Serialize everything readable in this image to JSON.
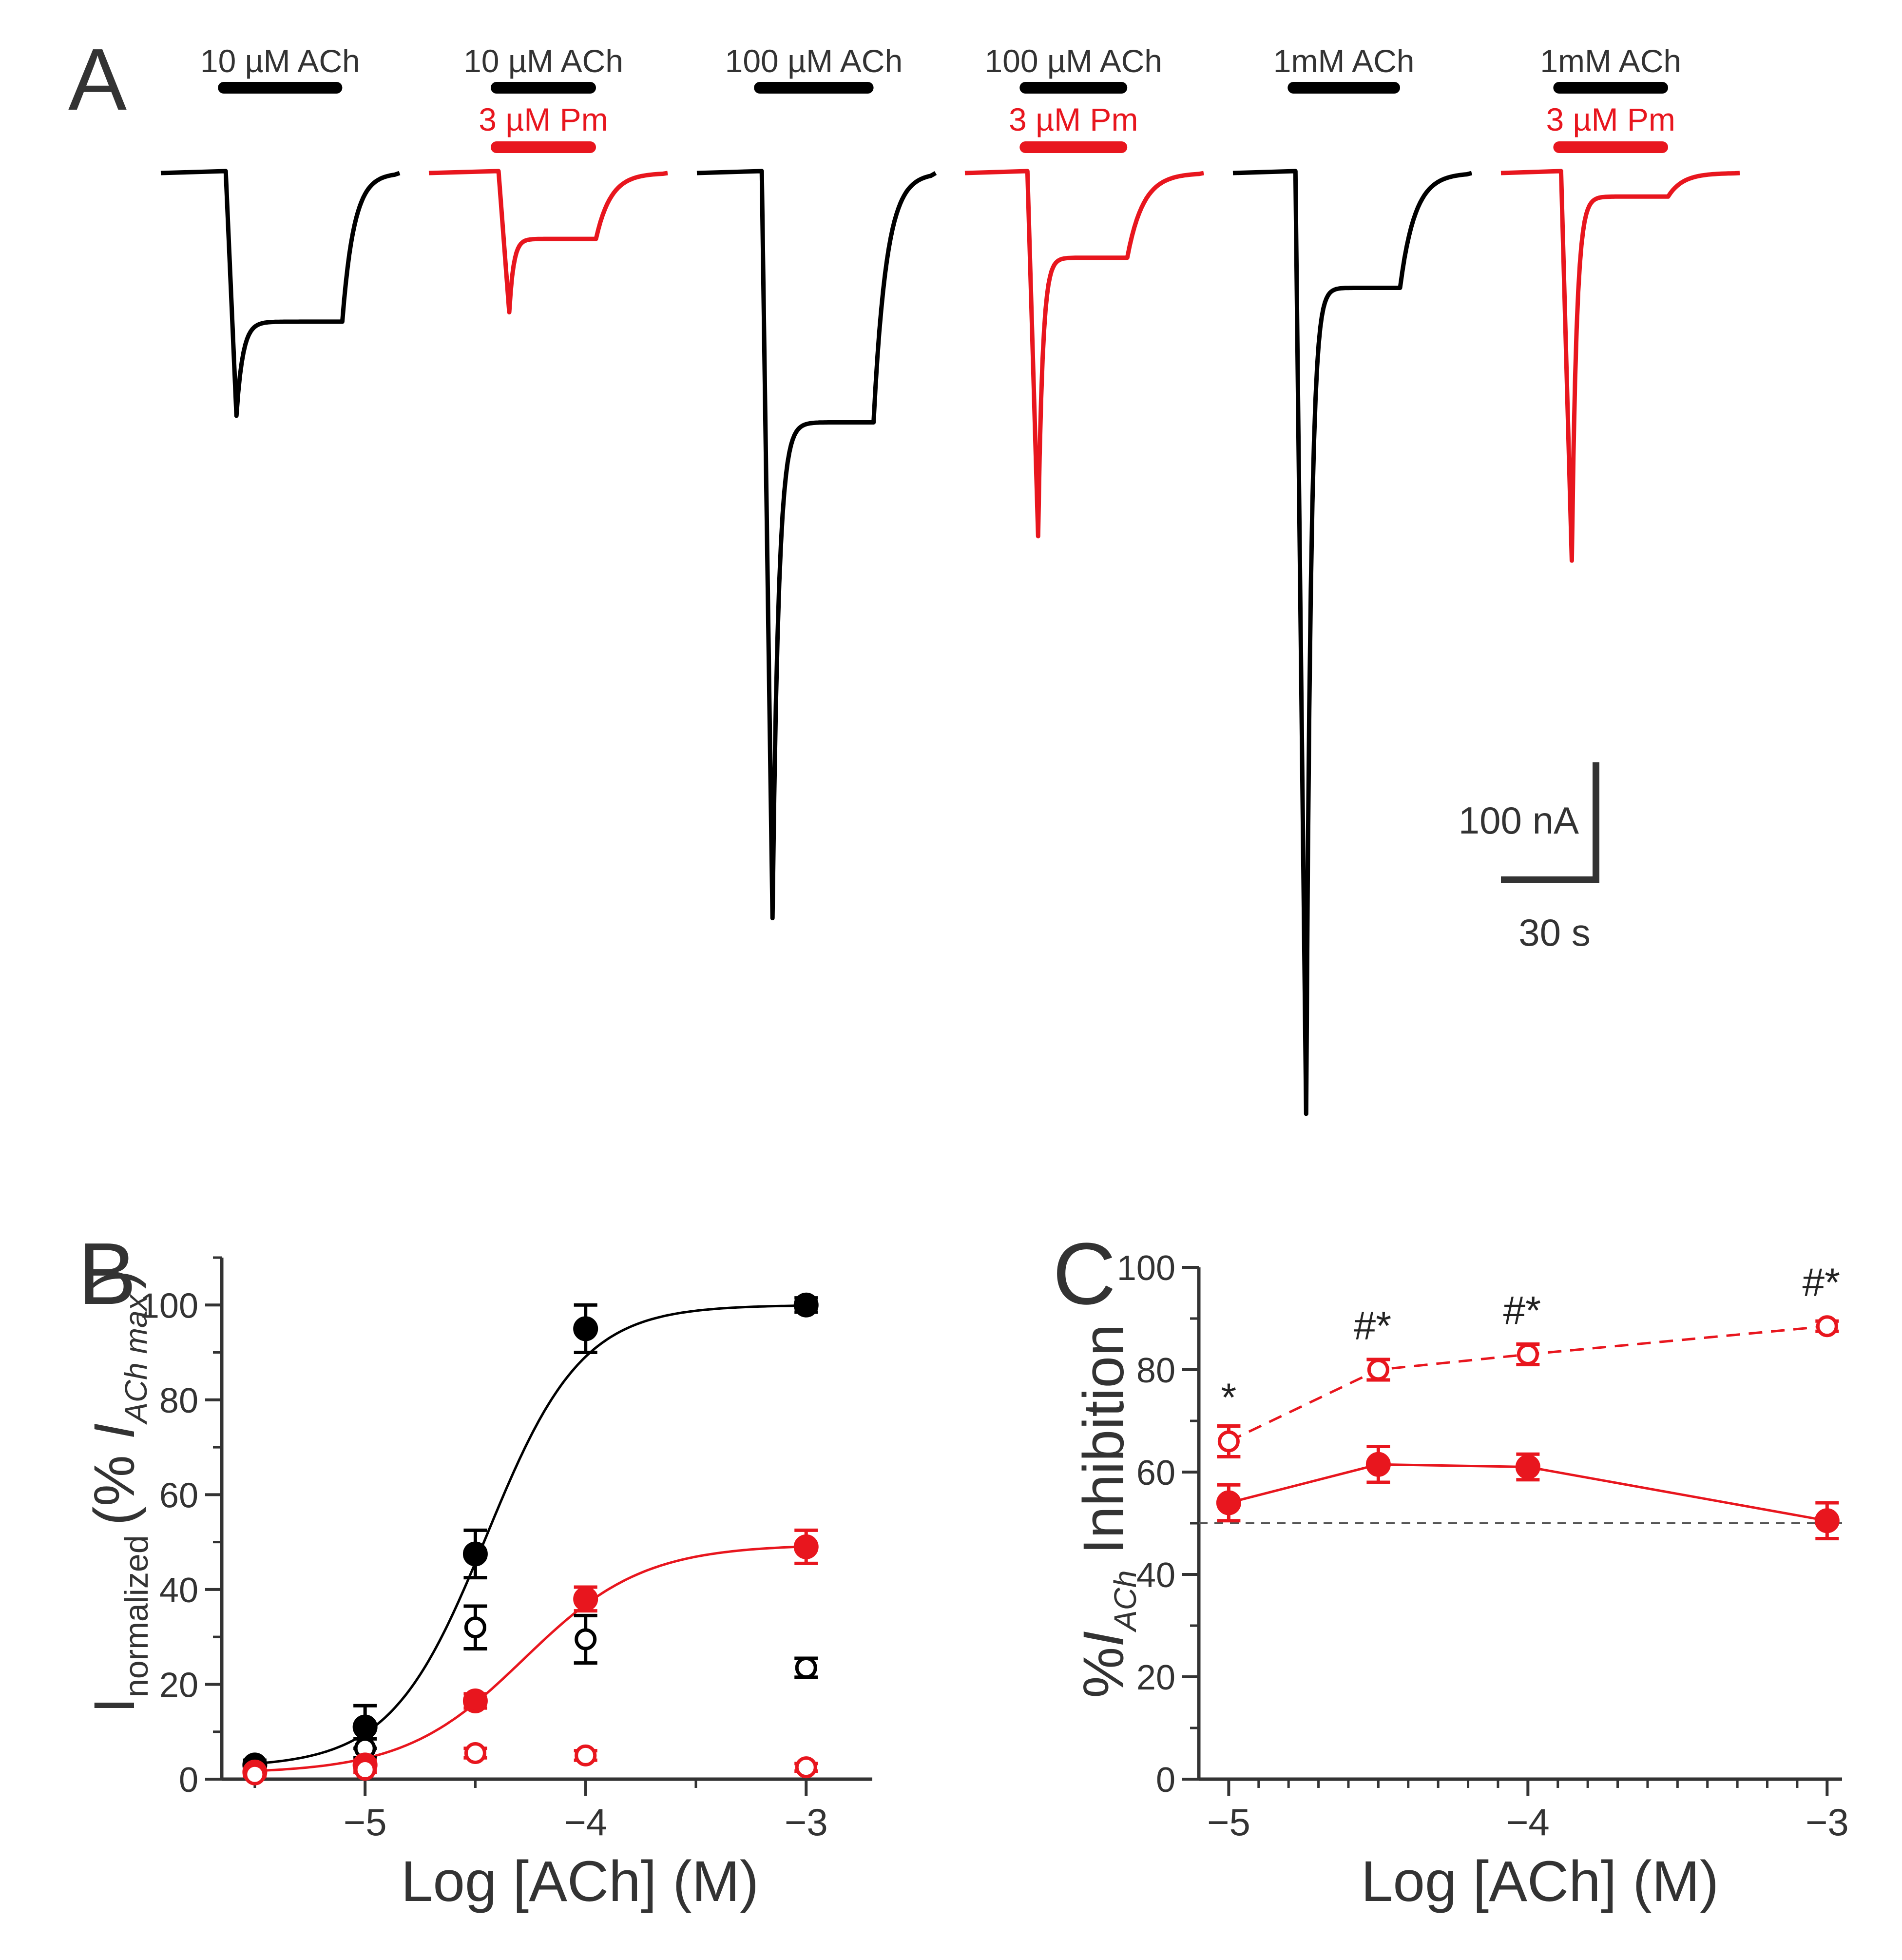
{
  "colors": {
    "control": "#000000",
    "pm": "#e8161e",
    "ref_line": "#555555"
  },
  "panel_labels": {
    "a": "A",
    "b": "B",
    "c": "C"
  },
  "panel_a": {
    "traces": [
      {
        "agonist_label": "10 µM ACh",
        "drug_label": null,
        "color": "control",
        "peak_nA": 258,
        "late_nA": 158
      },
      {
        "agonist_label": "10 µM ACh",
        "drug_label": "3 µM Pm",
        "color": "pm",
        "peak_nA": 148,
        "late_nA": 70
      },
      {
        "agonist_label": "100 µM ACh",
        "drug_label": null,
        "color": "control",
        "peak_nA": 792,
        "late_nA": 265
      },
      {
        "agonist_label": "100 µM ACh",
        "drug_label": "3 µM Pm",
        "color": "pm",
        "peak_nA": 386,
        "late_nA": 90
      },
      {
        "agonist_label": "1mM ACh",
        "drug_label": null,
        "color": "control",
        "peak_nA": 1000,
        "late_nA": 122
      },
      {
        "agonist_label": "1mM ACh",
        "drug_label": "3 µM Pm",
        "color": "pm",
        "peak_nA": 412,
        "late_nA": 25
      }
    ],
    "scale_bar": {
      "current_label": "100 nA",
      "time_label": "30 s",
      "current_nA": 100,
      "time_s": 30
    }
  },
  "chart_data": [
    {
      "type": "scatter",
      "panel": "B",
      "xlabel": "Log [ACh] (M)",
      "ylabel": {
        "main": "I",
        "sub1": "normalized",
        "open": "(% ",
        "italic": "I",
        "sub2": "ACh max",
        "close": ")"
      },
      "xlim": [
        -5.65,
        -2.7
      ],
      "ylim": [
        0,
        110
      ],
      "xticks": [
        -5,
        -4,
        -3
      ],
      "xtick_labels": [
        "−5",
        "−4",
        "−3"
      ],
      "yticks": [
        0,
        20,
        40,
        60,
        80,
        100
      ],
      "series": [
        {
          "name": "ACh peak",
          "color": "control",
          "filled": true,
          "x": [
            -5.5,
            -5,
            -4.5,
            -4,
            -3
          ],
          "y": [
            3,
            11,
            47.5,
            95,
            100
          ],
          "err": [
            1,
            4.5,
            5,
            5,
            1.5
          ],
          "fit": {
            "bottom": 2.5,
            "top": 100,
            "logEC50": -4.45,
            "hill": 2.0
          }
        },
        {
          "name": "ACh late",
          "color": "control",
          "filled": false,
          "x": [
            -5.5,
            -5,
            -4.5,
            -4,
            -3
          ],
          "y": [
            2,
            6.5,
            32,
            29.5,
            23.5
          ],
          "err": [
            0.8,
            2,
            4.5,
            5,
            2
          ]
        },
        {
          "name": "ACh + 3 µM Pm peak",
          "color": "pm",
          "filled": true,
          "x": [
            -5.5,
            -5,
            -4.5,
            -4,
            -3
          ],
          "y": [
            1.5,
            3,
            16.5,
            38,
            49
          ],
          "err": [
            0.5,
            1,
            1.5,
            2.5,
            3.5
          ],
          "fit": {
            "bottom": 1.2,
            "top": 49.5,
            "logEC50": -4.28,
            "hill": 1.6
          }
        },
        {
          "name": "ACh + 3 µM Pm late",
          "color": "pm",
          "filled": false,
          "x": [
            -5.5,
            -5,
            -4.5,
            -4,
            -3
          ],
          "y": [
            1,
            2,
            5.5,
            5,
            2.5
          ],
          "err": [
            0.4,
            0.6,
            1,
            1,
            0.8
          ]
        }
      ]
    },
    {
      "type": "line",
      "panel": "C",
      "xlabel": "Log [ACh] (M)",
      "ylabel": {
        "main": "%",
        "italic": "I",
        "sub": "ACh",
        "rest": " Inhibition"
      },
      "xlim": [
        -5.1,
        -2.95
      ],
      "ylim": [
        0,
        100
      ],
      "xticks": [
        -5,
        -4,
        -3
      ],
      "xtick_labels": [
        "−5",
        "−4",
        "−3"
      ],
      "yticks": [
        0,
        20,
        40,
        60,
        80,
        100
      ],
      "reference_line_y": 50,
      "series": [
        {
          "name": "Peak inhibition",
          "color": "pm",
          "filled": true,
          "dashed": false,
          "x": [
            -5,
            -4.5,
            -4,
            -3
          ],
          "y": [
            54,
            61.5,
            61,
            50.5
          ],
          "err": [
            3.5,
            3.5,
            2.5,
            3.5
          ]
        },
        {
          "name": "Late inhibition",
          "color": "pm",
          "filled": false,
          "dashed": true,
          "x": [
            -5,
            -4.5,
            -4,
            -3
          ],
          "y": [
            66,
            80,
            83,
            88.5
          ],
          "err": [
            3,
            2,
            2,
            1
          ]
        }
      ],
      "annotations": [
        {
          "x": -5,
          "y": 66,
          "text": "*"
        },
        {
          "x": -4.5,
          "y": 80,
          "text": "#*"
        },
        {
          "x": -4,
          "y": 83,
          "text": "#*"
        },
        {
          "x": -3,
          "y": 88.5,
          "text": "#*"
        }
      ]
    }
  ]
}
